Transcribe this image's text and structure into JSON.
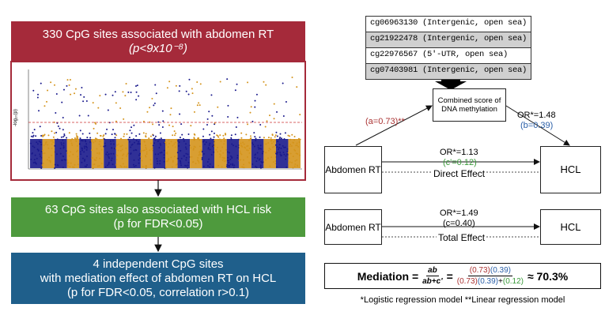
{
  "left": {
    "box1": {
      "line1": "330 CpG sites associated with abdomen RT",
      "line2": "(p<9x10⁻⁸)"
    },
    "plot": {
      "y_label": "-log₁₀(p)"
    },
    "box2": {
      "line1": "63 CpG sites also associated with HCL risk",
      "line2": "(p for FDR<0.05)"
    },
    "box3": {
      "line1": "4 independent CpG sites",
      "line2": "with mediation effect of abdomen RT on HCL",
      "line3": "(p for FDR<0.05, correlation r>0.1)"
    }
  },
  "right": {
    "cpg_sites": [
      "cg06963130 (Intergenic, open sea)",
      "cg21922478 (Intergenic, open sea)",
      "cg22976567 (5'-UTR, open sea)",
      "cg07403981 (Intergenic, open sea)"
    ],
    "mediator": "Combined score of DNA methylation",
    "path_a": "(a=0.73)**",
    "path_b": {
      "or": "OR*=1.48",
      "coef": "(b=0.39)"
    },
    "direct": {
      "exposure": "Abdomen RT",
      "outcome": "HCL",
      "or": "OR*=1.13",
      "coef": "(c'=0.12)",
      "label": "Direct Effect"
    },
    "total": {
      "exposure": "Abdomen RT",
      "outcome": "HCL",
      "or": "OR*=1.49",
      "coef": "(c=0.40)",
      "label": "Total Effect"
    },
    "mediation": {
      "label": "Mediation =",
      "num": "ab",
      "den": "ab+c'",
      "eq": "=",
      "num2": [
        "(0.73)",
        "(0.39)"
      ],
      "den2": [
        "(0.73)",
        "(0.39)",
        "+",
        "(0.12)"
      ],
      "result": "≈ 70.3%"
    },
    "footnote": "*Logistic regression model **Linear regression model"
  }
}
